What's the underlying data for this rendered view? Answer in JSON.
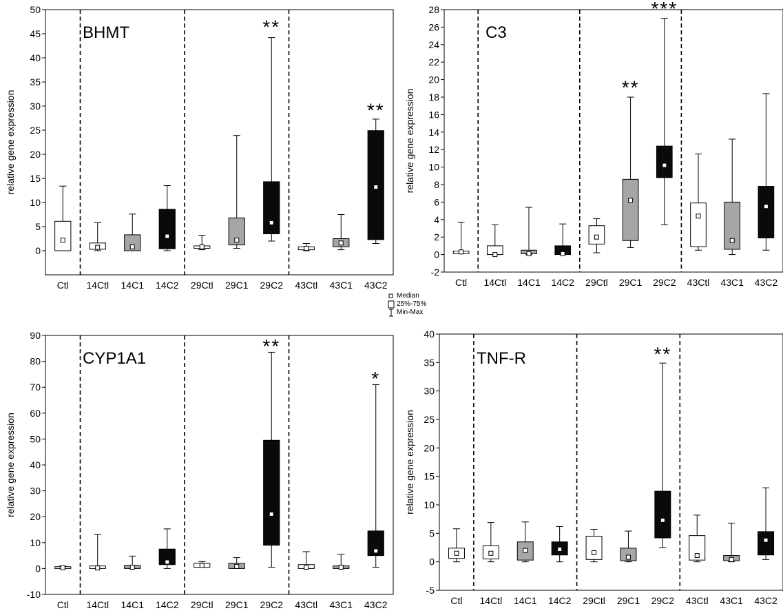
{
  "chart_data": [
    {
      "type": "boxplot",
      "title": "BHMT",
      "ylabel": "relative gene expression",
      "ylim": [
        -5,
        50
      ],
      "yticks": [
        0,
        5,
        10,
        15,
        20,
        25,
        30,
        35,
        40,
        45,
        50
      ],
      "categories": [
        "Ctl",
        "14Ctl",
        "14C1",
        "14C2",
        "29Ctl",
        "29C1",
        "29C2",
        "43Ctl",
        "43C1",
        "43C2"
      ],
      "fills": [
        "white",
        "white",
        "gray",
        "black",
        "white",
        "gray",
        "black",
        "white",
        "gray",
        "black"
      ],
      "min": [
        0,
        0,
        0,
        0,
        0.2,
        0.5,
        2,
        0,
        0.2,
        1.5
      ],
      "q1": [
        0,
        0.3,
        0,
        0.4,
        0.5,
        1.2,
        3.5,
        0.2,
        0.8,
        2.3
      ],
      "median": [
        2.2,
        0.7,
        0.8,
        3,
        0.8,
        2.2,
        5.8,
        0.5,
        1.6,
        13.2
      ],
      "q3": [
        6.1,
        1.6,
        3.3,
        8.6,
        1,
        6.8,
        14.3,
        0.8,
        2.5,
        24.9
      ],
      "max": [
        13.4,
        5.8,
        7.6,
        13.5,
        3.2,
        23.9,
        44.2,
        1.5,
        7.5,
        27.3
      ],
      "annotations": [
        {
          "category": "29C2",
          "text": "**",
          "y": 46.8
        },
        {
          "category": "43C2",
          "text": "**",
          "y": 29.5
        }
      ]
    },
    {
      "type": "boxplot",
      "title": "C3",
      "ylabel": "relative gene expression",
      "ylim": [
        -2,
        28
      ],
      "yticks": [
        -2,
        0,
        2,
        4,
        6,
        8,
        10,
        12,
        14,
        16,
        18,
        20,
        22,
        24,
        26,
        28
      ],
      "categories": [
        "Ctl",
        "14Ctl",
        "14C1",
        "14C2",
        "29Ctl",
        "29C1",
        "29C2",
        "43Ctl",
        "43C1",
        "43C2"
      ],
      "fills": [
        "white",
        "white",
        "gray",
        "black",
        "white",
        "gray",
        "black",
        "white",
        "gray",
        "black"
      ],
      "min": [
        0.1,
        0,
        0,
        0,
        0.2,
        0.8,
        3.4,
        0.5,
        0,
        0.5
      ],
      "q1": [
        0.1,
        0,
        0.1,
        0,
        1.2,
        1.6,
        8.8,
        0.9,
        0.6,
        1.9
      ],
      "median": [
        0.3,
        0,
        0.1,
        0.1,
        2,
        6.2,
        10.2,
        4.4,
        1.6,
        5.5
      ],
      "q3": [
        0.4,
        1,
        0.5,
        1,
        3.3,
        8.6,
        12.4,
        5.9,
        6,
        7.8
      ],
      "max": [
        3.7,
        3.4,
        5.4,
        3.5,
        4.1,
        18,
        27,
        11.5,
        13.2,
        18.4
      ],
      "annotations": [
        {
          "category": "29C1",
          "text": "**",
          "y": 19.3
        },
        {
          "category": "29C2",
          "text": "***",
          "y": 28.3
        }
      ]
    },
    {
      "type": "boxplot",
      "title": "CYP1A1",
      "ylabel": "relative gene expression",
      "ylim": [
        -10,
        90
      ],
      "yticks": [
        -10,
        0,
        10,
        20,
        30,
        40,
        50,
        60,
        70,
        80,
        90
      ],
      "categories": [
        "Ctl",
        "14Ctl",
        "14C1",
        "14C2",
        "29Ctl",
        "29C1",
        "29C2",
        "43Ctl",
        "43C1",
        "43C2"
      ],
      "fills": [
        "white",
        "white",
        "gray",
        "black",
        "white",
        "gray",
        "black",
        "white",
        "gray",
        "black"
      ],
      "min": [
        0,
        0,
        0,
        0,
        0.5,
        0,
        0.5,
        0,
        0,
        0.5
      ],
      "q1": [
        0,
        0,
        0,
        1.5,
        0.5,
        0,
        9,
        0,
        0,
        5
      ],
      "median": [
        0.3,
        0.2,
        0.5,
        2.5,
        1.2,
        0.8,
        21,
        0.5,
        0.5,
        6.8
      ],
      "q3": [
        0.7,
        1,
        1.2,
        7.5,
        2,
        2,
        49.5,
        1.5,
        1,
        14.5
      ],
      "max": [
        0.9,
        13.2,
        4.8,
        15.3,
        2.7,
        4.2,
        83.5,
        6.5,
        5.5,
        71
      ],
      "annotations": [
        {
          "category": "29C2",
          "text": "**",
          "y": 86.5
        },
        {
          "category": "43C2",
          "text": "*",
          "y": 74
        }
      ]
    },
    {
      "type": "boxplot",
      "title": "TNF-R",
      "ylabel": "relative gene expression",
      "ylim": [
        -5,
        40
      ],
      "yticks": [
        -5,
        0,
        5,
        10,
        15,
        20,
        25,
        30,
        35,
        40
      ],
      "categories": [
        "Ctl",
        "14Ctl",
        "14C1",
        "14C2",
        "29Ctl",
        "29C1",
        "29C2",
        "43Ctl",
        "43C1",
        "43C2"
      ],
      "fills": [
        "white",
        "white",
        "gray",
        "black",
        "white",
        "gray",
        "black",
        "white",
        "gray",
        "black"
      ],
      "min": [
        0,
        0,
        0,
        0,
        0,
        0,
        2.5,
        0,
        0,
        0.4
      ],
      "q1": [
        0.6,
        0.5,
        0.3,
        1.2,
        0.4,
        0.2,
        4.2,
        0.3,
        0.2,
        1.2
      ],
      "median": [
        1.5,
        1.5,
        2,
        2.2,
        1.6,
        0.8,
        7.3,
        1.1,
        0.4,
        3.8
      ],
      "q3": [
        2.4,
        2.8,
        3.5,
        3.5,
        4.5,
        2.4,
        12.4,
        4.6,
        1.1,
        5.3
      ],
      "max": [
        5.8,
        6.9,
        7,
        6.2,
        5.7,
        5.4,
        34.9,
        8.2,
        6.8,
        13
      ],
      "annotations": [
        {
          "category": "29C2",
          "text": "**",
          "y": 36.8
        }
      ]
    }
  ],
  "legend": {
    "median": "Median",
    "iqr": "25%-75%",
    "range": "Min-Max"
  },
  "colors": {
    "white_fill": "#ffffff",
    "gray_fill": "#a6a6a6",
    "black_fill": "#0a0a0a",
    "line": "#000000"
  }
}
